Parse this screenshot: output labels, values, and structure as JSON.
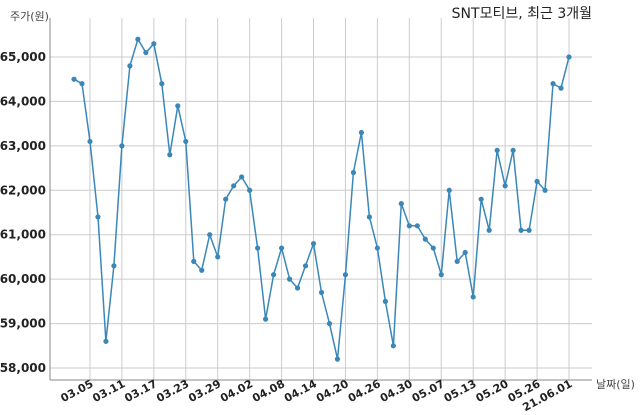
{
  "chart_data": {
    "type": "line",
    "title": "SNT모티브, 최근 3개월",
    "ylabel": "주가(원)",
    "xlabel": "날짜(일)",
    "ylim": [
      58000,
      65500
    ],
    "yticks": [
      58000,
      59000,
      60000,
      61000,
      62000,
      63000,
      64000,
      65000
    ],
    "ytick_labels": [
      "58,000",
      "59,000",
      "60,000",
      "61,000",
      "62,000",
      "63,000",
      "64,000",
      "65,000"
    ],
    "xtick_labels": [
      "03.05",
      "03.11",
      "03.17",
      "03.23",
      "03.29",
      "04.02",
      "04.08",
      "04.14",
      "04.20",
      "04.26",
      "04.30",
      "05.07",
      "05.13",
      "05.20",
      "05.26",
      "21.06.01"
    ],
    "xtick_index": [
      2,
      6,
      10,
      14,
      18,
      22,
      26,
      30,
      34,
      38,
      42,
      46,
      50,
      54,
      58,
      62
    ],
    "grid": true,
    "line_color": "#3a87b8",
    "series": [
      {
        "values": [
          64500,
          64400,
          63100,
          61400,
          58600,
          60300,
          63000,
          64800,
          65400,
          65100,
          65300,
          64400,
          62800,
          63900,
          63100,
          60400,
          60200,
          61000,
          60500,
          61800,
          62100,
          62300,
          62000,
          60700,
          59100,
          60100,
          60700,
          60000,
          59800,
          60300,
          60800,
          59700,
          59000,
          58200,
          60100,
          62400,
          63300,
          61400,
          60700,
          59500,
          58500,
          61700,
          61200,
          61200,
          60900,
          60700,
          60100,
          62000,
          60400,
          60600,
          59600,
          61800,
          61100,
          62900,
          62100,
          62900,
          61100,
          61100,
          62200,
          62000,
          64400,
          64300,
          65000
        ]
      }
    ]
  }
}
